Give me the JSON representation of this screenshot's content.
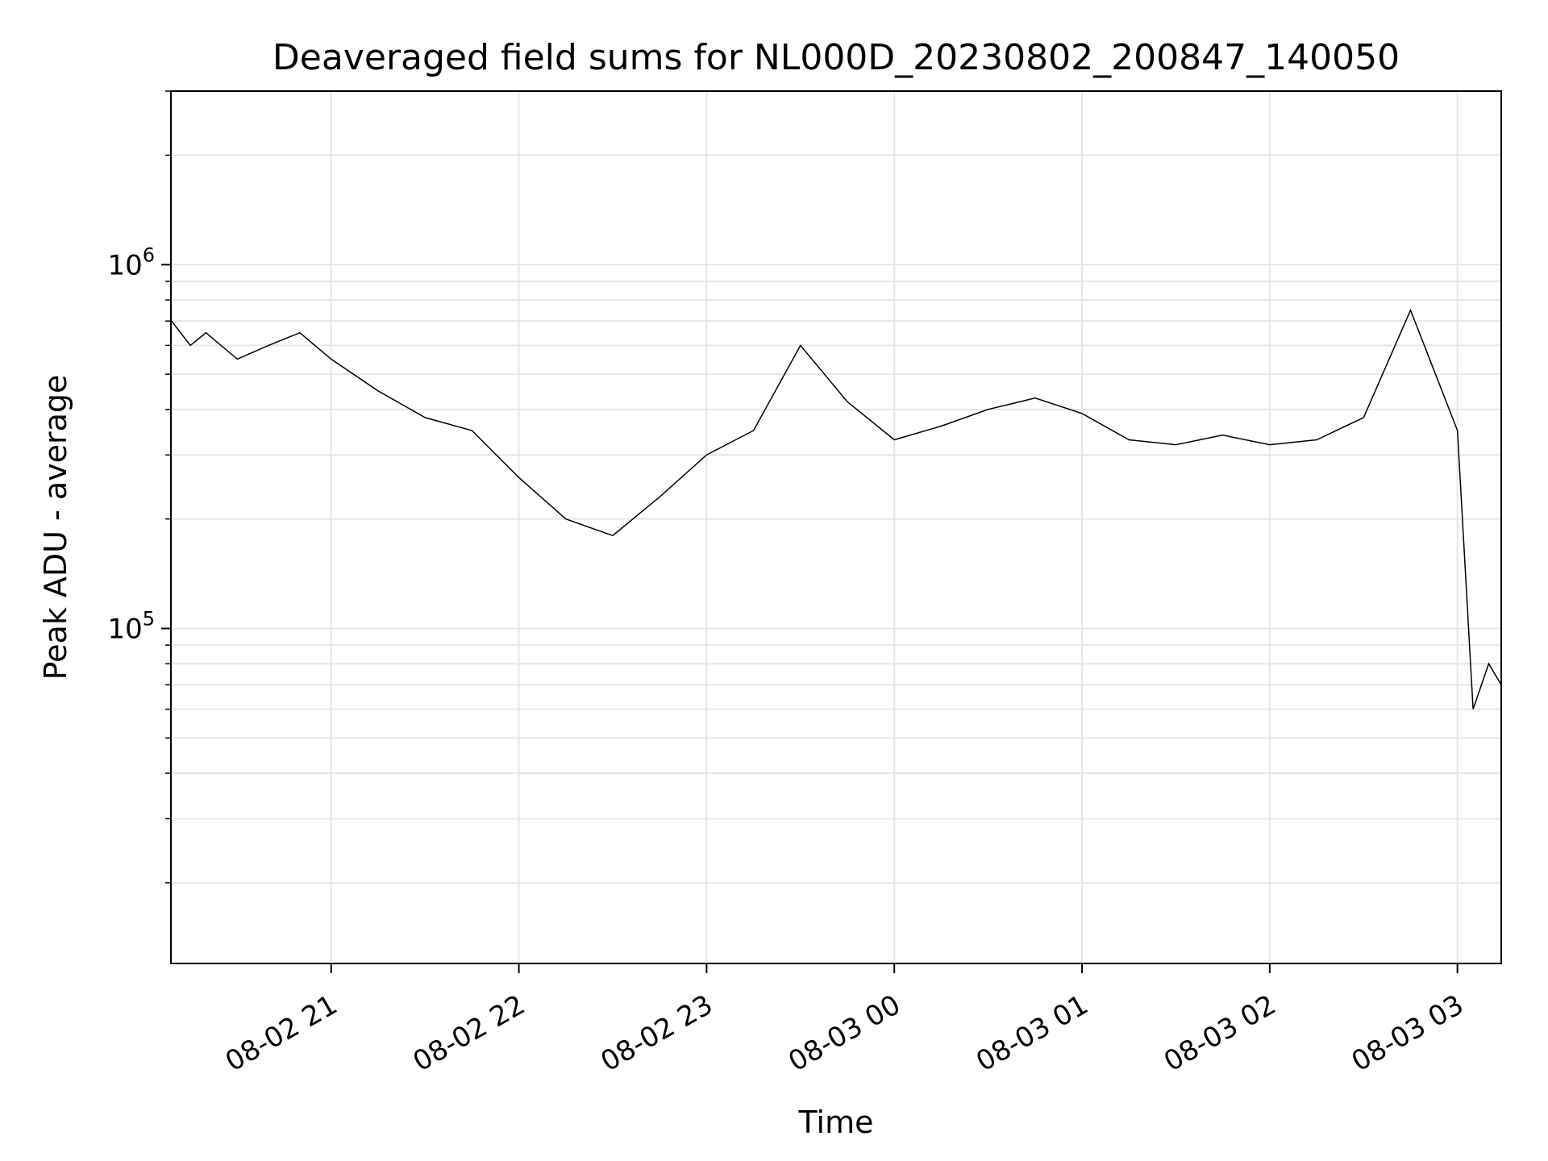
{
  "chart_data": {
    "type": "line",
    "title": "Deaveraged field sums for NL000D_20230802_200847_140050",
    "xlabel": "Time",
    "ylabel": "Peak ADU - average",
    "yscale": "log",
    "ylim": [
      12000,
      3000000
    ],
    "xlim": [
      "2023-08-02 20:08:47",
      "2023-08-03 03:14:00"
    ],
    "grid": true,
    "line_color": "#000000",
    "grid_color": "#e6e6e6",
    "x_ticks": [
      {
        "time": "2023-08-02 21:00",
        "label": "08-02 21"
      },
      {
        "time": "2023-08-02 22:00",
        "label": "08-02 22"
      },
      {
        "time": "2023-08-02 23:00",
        "label": "08-02 23"
      },
      {
        "time": "2023-08-03 00:00",
        "label": "08-03 00"
      },
      {
        "time": "2023-08-03 01:00",
        "label": "08-03 01"
      },
      {
        "time": "2023-08-03 02:00",
        "label": "08-03 02"
      },
      {
        "time": "2023-08-03 03:00",
        "label": "08-03 03"
      }
    ],
    "y_ticks": [
      {
        "value": 100000,
        "base": "10",
        "exp": "5"
      },
      {
        "value": 1000000,
        "base": "10",
        "exp": "6"
      }
    ],
    "series": [
      {
        "x": [
          "2023-08-02 20:09",
          "2023-08-02 20:15",
          "2023-08-02 20:20",
          "2023-08-02 20:30",
          "2023-08-02 20:40",
          "2023-08-02 20:50",
          "2023-08-02 21:00",
          "2023-08-02 21:15",
          "2023-08-02 21:30",
          "2023-08-02 21:45",
          "2023-08-02 22:00",
          "2023-08-02 22:15",
          "2023-08-02 22:30",
          "2023-08-02 22:45",
          "2023-08-02 23:00",
          "2023-08-02 23:15",
          "2023-08-02 23:30",
          "2023-08-02 23:45",
          "2023-08-03 00:00",
          "2023-08-03 00:15",
          "2023-08-03 00:30",
          "2023-08-03 00:45",
          "2023-08-03 01:00",
          "2023-08-03 01:15",
          "2023-08-03 01:30",
          "2023-08-03 01:45",
          "2023-08-03 02:00",
          "2023-08-03 02:15",
          "2023-08-03 02:30",
          "2023-08-03 02:45",
          "2023-08-03 03:00",
          "2023-08-03 03:05",
          "2023-08-03 03:10",
          "2023-08-03 03:14"
        ],
        "y": [
          700000,
          600000,
          650000,
          550000,
          600000,
          650000,
          550000,
          450000,
          380000,
          350000,
          260000,
          200000,
          180000,
          230000,
          300000,
          350000,
          600000,
          420000,
          330000,
          360000,
          400000,
          430000,
          390000,
          330000,
          320000,
          340000,
          320000,
          330000,
          380000,
          750000,
          350000,
          60000,
          80000,
          70000
        ]
      }
    ]
  }
}
